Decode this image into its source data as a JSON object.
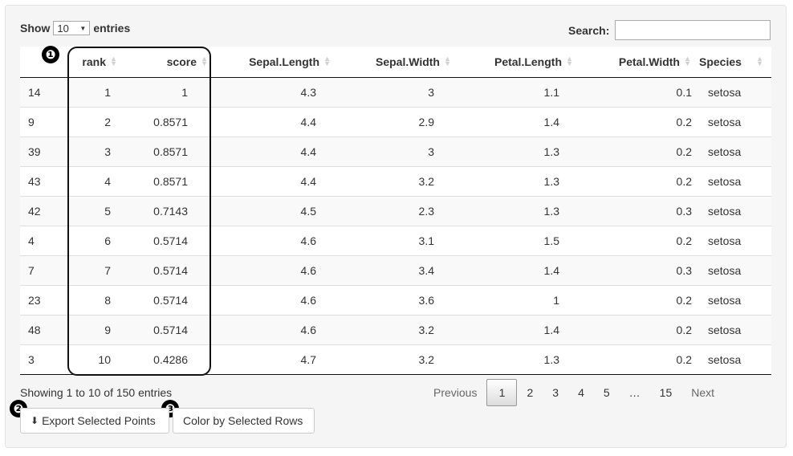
{
  "length_menu": {
    "show": "Show",
    "value": "10",
    "entries": "entries"
  },
  "search": {
    "label": "Search:",
    "value": ""
  },
  "columns": [
    "",
    "rank",
    "score",
    "Sepal.Length",
    "Sepal.Width",
    "Petal.Length",
    "Petal.Width",
    "Species"
  ],
  "rows": [
    [
      "14",
      "1",
      "1",
      "4.3",
      "3",
      "1.1",
      "0.1",
      "setosa"
    ],
    [
      "9",
      "2",
      "0.8571",
      "4.4",
      "2.9",
      "1.4",
      "0.2",
      "setosa"
    ],
    [
      "39",
      "3",
      "0.8571",
      "4.4",
      "3",
      "1.3",
      "0.2",
      "setosa"
    ],
    [
      "43",
      "4",
      "0.8571",
      "4.4",
      "3.2",
      "1.3",
      "0.2",
      "setosa"
    ],
    [
      "42",
      "5",
      "0.7143",
      "4.5",
      "2.3",
      "1.3",
      "0.3",
      "setosa"
    ],
    [
      "4",
      "6",
      "0.5714",
      "4.6",
      "3.1",
      "1.5",
      "0.2",
      "setosa"
    ],
    [
      "7",
      "7",
      "0.5714",
      "4.6",
      "3.4",
      "1.4",
      "0.3",
      "setosa"
    ],
    [
      "23",
      "8",
      "0.5714",
      "4.6",
      "3.6",
      "1",
      "0.2",
      "setosa"
    ],
    [
      "48",
      "9",
      "0.5714",
      "4.6",
      "3.2",
      "1.4",
      "0.2",
      "setosa"
    ],
    [
      "3",
      "10",
      "0.4286",
      "4.7",
      "3.2",
      "1.3",
      "0.2",
      "setosa"
    ]
  ],
  "info": "Showing 1 to 10 of 150 entries",
  "pagination": {
    "previous": "Previous",
    "pages": [
      "1",
      "2",
      "3",
      "4",
      "5"
    ],
    "ellipsis": "…",
    "last": "15",
    "next": "Next",
    "current": "1"
  },
  "buttons": {
    "export": "Export Selected Points",
    "color": "Color by Selected Rows"
  },
  "markers": [
    "❶",
    "❷",
    "❸"
  ]
}
